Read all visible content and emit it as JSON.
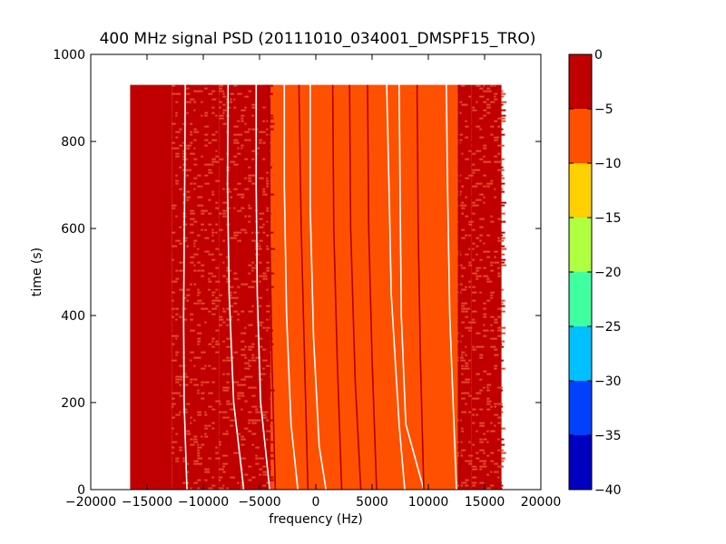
{
  "chart_data": {
    "type": "heatmap",
    "title": "400 MHz signal PSD (20111010_034001_DMSPF15_TRO)",
    "xlabel": "frequency (Hz)",
    "ylabel": "time (s)",
    "xlim": [
      -20000,
      20000
    ],
    "ylim": [
      0,
      1000
    ],
    "x_ticks": [
      -20000,
      -15000,
      -10000,
      -5000,
      0,
      5000,
      10000,
      15000,
      20000
    ],
    "x_tick_labels": [
      "−20000",
      "−15000",
      "−10000",
      "−5000",
      "0",
      "5000",
      "10000",
      "15000",
      "20000"
    ],
    "y_ticks": [
      0,
      200,
      400,
      600,
      800,
      1000
    ],
    "y_tick_labels": [
      "0",
      "200",
      "400",
      "600",
      "800",
      "1000"
    ],
    "data_extent": {
      "x": [
        -16500,
        16500
      ],
      "y": [
        0,
        930
      ]
    },
    "bands": [
      {
        "x0": -16500,
        "x1": -12800,
        "level": -2.5
      },
      {
        "x0": -12800,
        "x1": -8600,
        "level": -4
      },
      {
        "x0": -8600,
        "x1": -4000,
        "level": -5
      },
      {
        "x0": -4000,
        "x1": 12600,
        "level": -7.5
      },
      {
        "x0": 12600,
        "x1": 13800,
        "level": -4.5
      },
      {
        "x0": 13800,
        "x1": 16500,
        "level": -2.5
      }
    ],
    "trace_lines": [
      {
        "color": "#ffffff",
        "points": [
          [
            -11600,
            930
          ],
          [
            -11650,
            700
          ],
          [
            -11750,
            400
          ],
          [
            -11700,
            200
          ],
          [
            -11450,
            0
          ]
        ]
      },
      {
        "color": "#ffffff",
        "points": [
          [
            -7800,
            930
          ],
          [
            -7850,
            700
          ],
          [
            -7700,
            450
          ],
          [
            -7300,
            200
          ],
          [
            -6400,
            0
          ]
        ]
      },
      {
        "color": "#ffffff",
        "points": [
          [
            -5300,
            930
          ],
          [
            -5300,
            700
          ],
          [
            -5200,
            450
          ],
          [
            -4900,
            200
          ],
          [
            -4100,
            0
          ]
        ]
      },
      {
        "color": "#b00000",
        "points": [
          [
            -4200,
            930
          ],
          [
            -4100,
            600
          ],
          [
            -3900,
            300
          ],
          [
            -3600,
            0
          ]
        ]
      },
      {
        "color": "#ffffff",
        "points": [
          [
            -2800,
            930
          ],
          [
            -2800,
            700
          ],
          [
            -2600,
            400
          ],
          [
            -2200,
            150
          ],
          [
            -1600,
            0
          ]
        ]
      },
      {
        "color": "#b00000",
        "points": [
          [
            -1500,
            930
          ],
          [
            -1300,
            600
          ],
          [
            -1000,
            300
          ],
          [
            -700,
            0
          ]
        ]
      },
      {
        "color": "#ffffff",
        "points": [
          [
            -500,
            930
          ],
          [
            -500,
            650
          ],
          [
            -200,
            350
          ],
          [
            300,
            100
          ],
          [
            900,
            0
          ]
        ]
      },
      {
        "color": "#b00000",
        "points": [
          [
            1500,
            930
          ],
          [
            1600,
            600
          ],
          [
            1900,
            300
          ],
          [
            2300,
            0
          ]
        ]
      },
      {
        "color": "#b00000",
        "points": [
          [
            3000,
            930
          ],
          [
            3100,
            600
          ],
          [
            3500,
            250
          ],
          [
            4000,
            0
          ]
        ]
      },
      {
        "color": "#b00000",
        "points": [
          [
            4600,
            930
          ],
          [
            4700,
            600
          ],
          [
            5000,
            300
          ],
          [
            5400,
            0
          ]
        ]
      },
      {
        "color": "#ffffff",
        "points": [
          [
            6300,
            930
          ],
          [
            6500,
            700
          ],
          [
            6700,
            450
          ],
          [
            7400,
            150
          ],
          [
            7900,
            0
          ]
        ]
      },
      {
        "color": "#ffffff",
        "points": [
          [
            7400,
            930
          ],
          [
            7500,
            650
          ],
          [
            7600,
            400
          ],
          [
            8000,
            150
          ],
          [
            9600,
            0
          ]
        ]
      },
      {
        "color": "#b00000",
        "points": [
          [
            9000,
            930
          ],
          [
            9100,
            600
          ],
          [
            9300,
            300
          ],
          [
            9600,
            0
          ]
        ]
      },
      {
        "color": "#ffffff",
        "points": [
          [
            11600,
            930
          ],
          [
            11700,
            700
          ],
          [
            11900,
            400
          ],
          [
            12200,
            200
          ],
          [
            12500,
            0
          ]
        ]
      },
      {
        "color": "#b00000",
        "points": [
          [
            12700,
            930
          ],
          [
            12750,
            500
          ],
          [
            12800,
            0
          ]
        ]
      }
    ],
    "colorbar": {
      "min": -40,
      "max": 0,
      "tick_values": [
        0,
        -5,
        -10,
        -15,
        -20,
        -25,
        -30,
        -35,
        -40
      ],
      "tick_labels": [
        "0",
        "−5",
        "−10",
        "−15",
        "−20",
        "−25",
        "−30",
        "−35",
        "−40"
      ],
      "levels": [
        {
          "from": -5,
          "to": 0,
          "color": "#c00000"
        },
        {
          "from": -10,
          "to": -5,
          "color": "#ff5000"
        },
        {
          "from": -15,
          "to": -10,
          "color": "#ffd000"
        },
        {
          "from": -20,
          "to": -15,
          "color": "#b0ff40"
        },
        {
          "from": -25,
          "to": -20,
          "color": "#40ffa0"
        },
        {
          "from": -30,
          "to": -25,
          "color": "#00c0ff"
        },
        {
          "from": -35,
          "to": -30,
          "color": "#0040ff"
        },
        {
          "from": -40,
          "to": -35,
          "color": "#0000c0"
        }
      ]
    }
  }
}
